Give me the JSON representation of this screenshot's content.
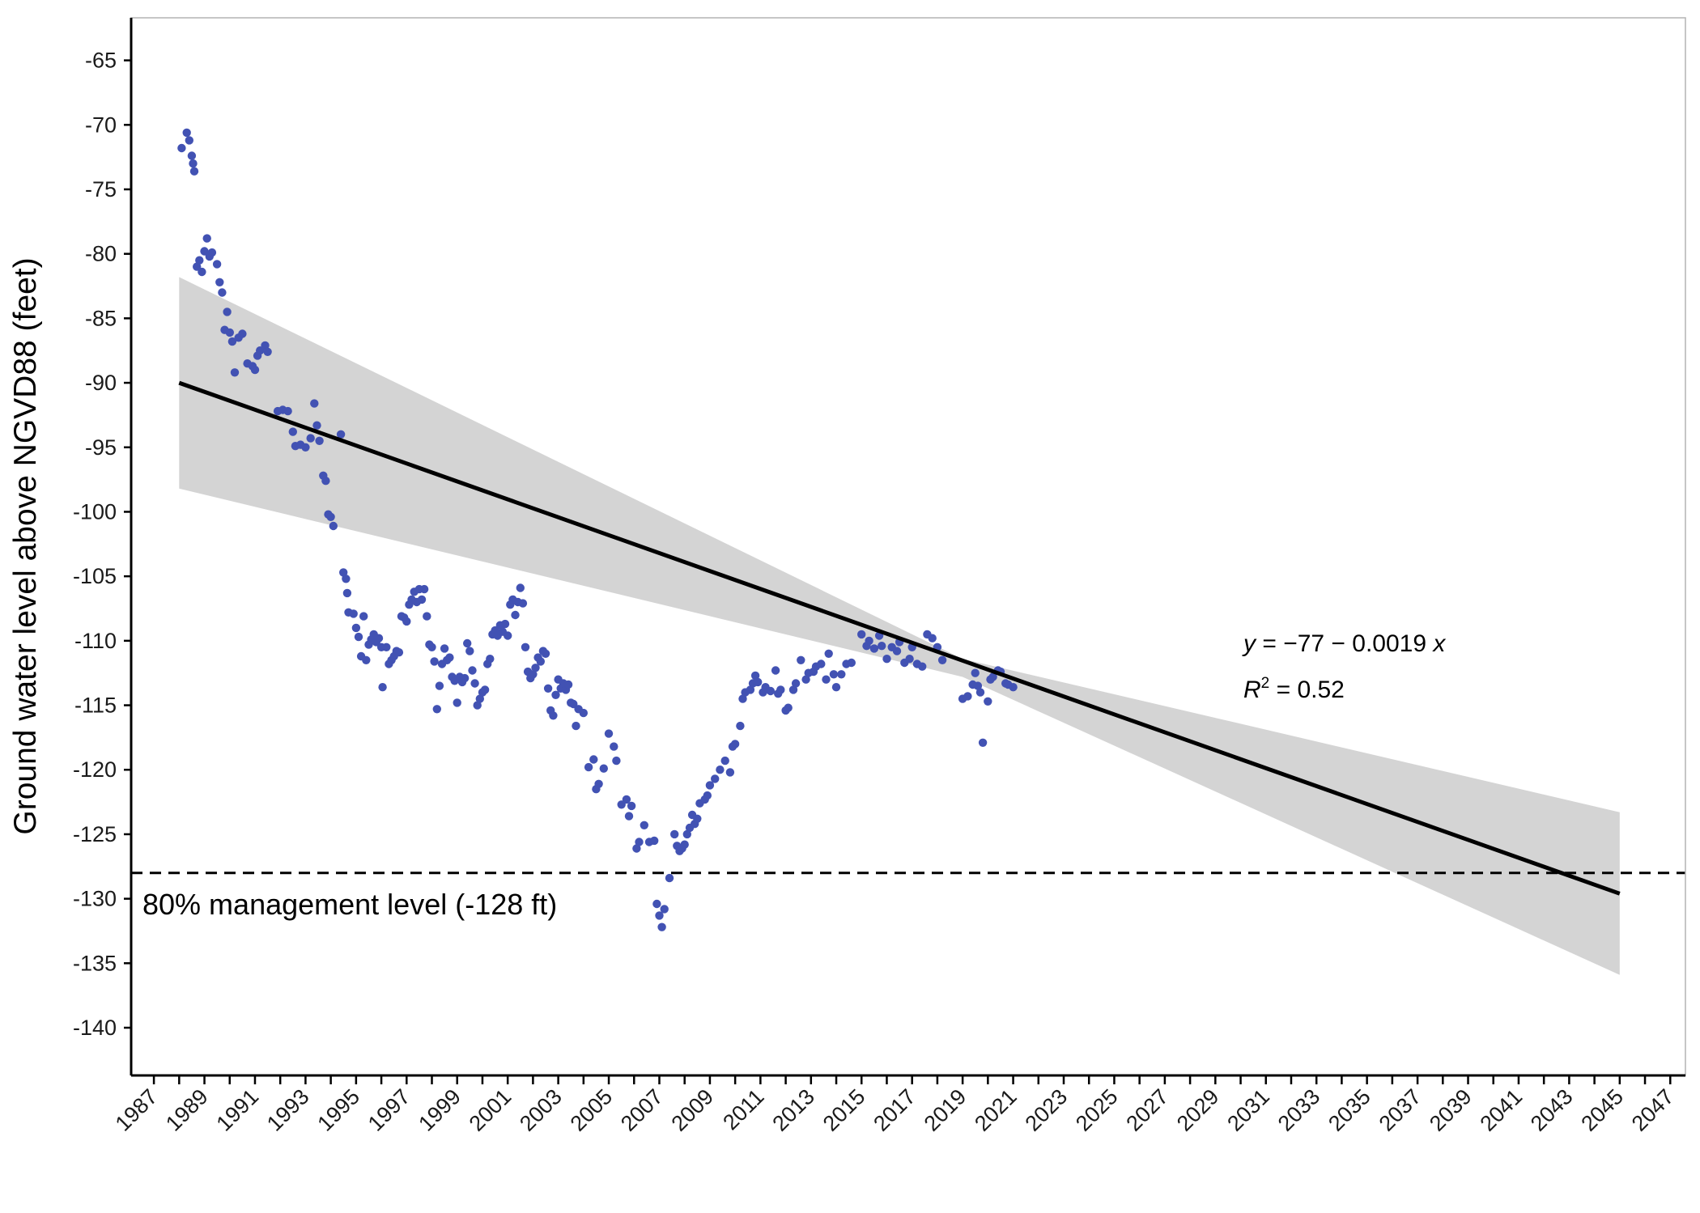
{
  "chart_data": {
    "type": "scatter",
    "title": "",
    "ylabel": "Ground water level above NGVD88 (feet)",
    "xlabel": "",
    "xlim": [
      1986.1,
      2047.6
    ],
    "ylim": [
      -143.7,
      -61.7
    ],
    "x_ticks": [
      "1987",
      "1989",
      "1991",
      "1993",
      "1995",
      "1997",
      "1999",
      "2001",
      "2003",
      "2005",
      "2007",
      "2009",
      "2011",
      "2013",
      "2015",
      "2017",
      "2019",
      "2021",
      "2023",
      "2025",
      "2027",
      "2029",
      "2031",
      "2033",
      "2035",
      "2037",
      "2039",
      "2041",
      "2043",
      "2045",
      "2047"
    ],
    "y_ticks": [
      "-65",
      "-70",
      "-75",
      "-80",
      "-85",
      "-90",
      "-95",
      "-100",
      "-105",
      "-110",
      "-115",
      "-120",
      "-125",
      "-130",
      "-135",
      "-140"
    ],
    "grid": false,
    "legend": "none",
    "colors": {
      "points": "#4252b3",
      "fit_line": "#000000",
      "confidence_band": "#d4d4d4",
      "reference_line": "#000000"
    },
    "fit": {
      "x_range": [
        1988,
        2045
      ],
      "y_at_start": -90.0,
      "y_at_end": -129.6,
      "band_at_start": [
        -98.2,
        -81.8
      ],
      "band_at_pivot": [
        -112.8,
        -111.4
      ],
      "band_pivot_x": 2019,
      "band_at_end": [
        -135.9,
        -123.3
      ]
    },
    "reference_line": {
      "y": -128
    },
    "annotations": {
      "equation_y": "y",
      "equation_rest": " = −77 − 0.0019 ",
      "equation_x": "x",
      "r2_r": "R",
      "r2_sup": "2",
      "r2_value": " = 0.52",
      "reference_label": "80% management level (-128 ft)"
    },
    "points": [
      [
        1988.1,
        -71.8
      ],
      [
        1988.3,
        -70.6
      ],
      [
        1988.4,
        -71.2
      ],
      [
        1988.5,
        -72.4
      ],
      [
        1988.55,
        -73.0
      ],
      [
        1988.6,
        -73.6
      ],
      [
        1988.7,
        -81.0
      ],
      [
        1988.8,
        -80.5
      ],
      [
        1988.9,
        -81.4
      ],
      [
        1989.0,
        -79.8
      ],
      [
        1989.1,
        -78.8
      ],
      [
        1989.2,
        -80.2
      ],
      [
        1989.3,
        -79.9
      ],
      [
        1989.5,
        -80.8
      ],
      [
        1989.6,
        -82.2
      ],
      [
        1989.7,
        -83.0
      ],
      [
        1989.8,
        -85.9
      ],
      [
        1989.9,
        -84.5
      ],
      [
        1990.0,
        -86.1
      ],
      [
        1990.1,
        -86.8
      ],
      [
        1990.2,
        -89.2
      ],
      [
        1990.35,
        -86.5
      ],
      [
        1990.5,
        -86.2
      ],
      [
        1990.7,
        -88.5
      ],
      [
        1990.9,
        -88.7
      ],
      [
        1991.0,
        -89.0
      ],
      [
        1991.1,
        -87.9
      ],
      [
        1991.2,
        -87.5
      ],
      [
        1991.4,
        -87.1
      ],
      [
        1991.5,
        -87.6
      ],
      [
        1991.9,
        -92.2
      ],
      [
        1992.1,
        -92.1
      ],
      [
        1992.3,
        -92.2
      ],
      [
        1992.5,
        -93.8
      ],
      [
        1992.6,
        -94.9
      ],
      [
        1992.8,
        -94.8
      ],
      [
        1993.0,
        -95.0
      ],
      [
        1993.2,
        -94.3
      ],
      [
        1993.35,
        -91.6
      ],
      [
        1993.45,
        -93.3
      ],
      [
        1993.55,
        -94.5
      ],
      [
        1993.7,
        -97.2
      ],
      [
        1993.8,
        -97.6
      ],
      [
        1993.9,
        -100.2
      ],
      [
        1994.0,
        -100.4
      ],
      [
        1994.1,
        -101.1
      ],
      [
        1994.4,
        -94.0
      ],
      [
        1994.5,
        -104.7
      ],
      [
        1994.6,
        -105.2
      ],
      [
        1994.65,
        -106.3
      ],
      [
        1994.7,
        -107.8
      ],
      [
        1994.9,
        -107.9
      ],
      [
        1995.0,
        -109.0
      ],
      [
        1995.1,
        -109.7
      ],
      [
        1995.2,
        -111.2
      ],
      [
        1995.3,
        -108.1
      ],
      [
        1995.4,
        -111.5
      ],
      [
        1995.5,
        -110.3
      ],
      [
        1995.6,
        -109.9
      ],
      [
        1995.7,
        -109.5
      ],
      [
        1995.8,
        -110.1
      ],
      [
        1995.9,
        -109.8
      ],
      [
        1996.0,
        -110.5
      ],
      [
        1996.05,
        -113.6
      ],
      [
        1996.2,
        -110.5
      ],
      [
        1996.3,
        -111.8
      ],
      [
        1996.4,
        -111.5
      ],
      [
        1996.5,
        -111.2
      ],
      [
        1996.6,
        -110.8
      ],
      [
        1996.7,
        -110.9
      ],
      [
        1996.8,
        -108.1
      ],
      [
        1996.9,
        -108.2
      ],
      [
        1997.0,
        -108.5
      ],
      [
        1997.1,
        -107.2
      ],
      [
        1997.2,
        -106.8
      ],
      [
        1997.3,
        -106.2
      ],
      [
        1997.4,
        -107.0
      ],
      [
        1997.5,
        -106.0
      ],
      [
        1997.6,
        -106.8
      ],
      [
        1997.7,
        -106.0
      ],
      [
        1997.8,
        -108.1
      ],
      [
        1997.9,
        -110.3
      ],
      [
        1998.0,
        -110.5
      ],
      [
        1998.1,
        -111.6
      ],
      [
        1998.2,
        -115.3
      ],
      [
        1998.3,
        -113.5
      ],
      [
        1998.4,
        -111.8
      ],
      [
        1998.5,
        -110.6
      ],
      [
        1998.6,
        -111.5
      ],
      [
        1998.7,
        -111.3
      ],
      [
        1998.8,
        -112.8
      ],
      [
        1998.9,
        -113.1
      ],
      [
        1999.0,
        -114.8
      ],
      [
        1999.1,
        -112.8
      ],
      [
        1999.2,
        -113.2
      ],
      [
        1999.3,
        -112.9
      ],
      [
        1999.4,
        -110.2
      ],
      [
        1999.5,
        -110.8
      ],
      [
        1999.6,
        -112.3
      ],
      [
        1999.7,
        -113.3
      ],
      [
        1999.8,
        -115.0
      ],
      [
        1999.9,
        -114.5
      ],
      [
        2000.0,
        -114.0
      ],
      [
        2000.1,
        -113.8
      ],
      [
        2000.2,
        -111.8
      ],
      [
        2000.3,
        -111.4
      ],
      [
        2000.4,
        -109.5
      ],
      [
        2000.5,
        -109.2
      ],
      [
        2000.6,
        -109.6
      ],
      [
        2000.7,
        -108.8
      ],
      [
        2000.8,
        -109.3
      ],
      [
        2000.9,
        -108.7
      ],
      [
        2001.0,
        -109.6
      ],
      [
        2001.1,
        -107.2
      ],
      [
        2001.2,
        -106.8
      ],
      [
        2001.3,
        -108.0
      ],
      [
        2001.4,
        -107.0
      ],
      [
        2001.5,
        -105.9
      ],
      [
        2001.6,
        -107.1
      ],
      [
        2001.7,
        -110.5
      ],
      [
        2001.8,
        -112.4
      ],
      [
        2001.9,
        -112.9
      ],
      [
        2002.0,
        -112.6
      ],
      [
        2002.1,
        -112.1
      ],
      [
        2002.2,
        -111.3
      ],
      [
        2002.3,
        -111.6
      ],
      [
        2002.4,
        -110.8
      ],
      [
        2002.5,
        -111.0
      ],
      [
        2002.6,
        -113.7
      ],
      [
        2002.7,
        -115.4
      ],
      [
        2002.8,
        -115.8
      ],
      [
        2002.9,
        -114.2
      ],
      [
        2003.0,
        -113.0
      ],
      [
        2003.1,
        -113.7
      ],
      [
        2003.2,
        -113.3
      ],
      [
        2003.3,
        -113.8
      ],
      [
        2003.4,
        -113.4
      ],
      [
        2003.5,
        -114.8
      ],
      [
        2003.6,
        -114.9
      ],
      [
        2003.7,
        -116.6
      ],
      [
        2003.8,
        -115.3
      ],
      [
        2004.0,
        -115.6
      ],
      [
        2004.2,
        -119.8
      ],
      [
        2004.4,
        -119.2
      ],
      [
        2004.5,
        -121.5
      ],
      [
        2004.6,
        -121.1
      ],
      [
        2004.8,
        -119.9
      ],
      [
        2005.0,
        -117.2
      ],
      [
        2005.2,
        -118.2
      ],
      [
        2005.3,
        -119.3
      ],
      [
        2005.5,
        -122.7
      ],
      [
        2005.7,
        -122.3
      ],
      [
        2005.8,
        -123.6
      ],
      [
        2005.9,
        -122.8
      ],
      [
        2006.1,
        -126.1
      ],
      [
        2006.2,
        -125.6
      ],
      [
        2006.4,
        -124.3
      ],
      [
        2006.6,
        -125.6
      ],
      [
        2006.8,
        -125.5
      ],
      [
        2006.9,
        -130.4
      ],
      [
        2007.0,
        -131.3
      ],
      [
        2007.1,
        -132.2
      ],
      [
        2007.2,
        -130.8
      ],
      [
        2007.4,
        -128.4
      ],
      [
        2007.6,
        -125.0
      ],
      [
        2007.7,
        -125.9
      ],
      [
        2007.8,
        -126.3
      ],
      [
        2007.9,
        -126.1
      ],
      [
        2008.0,
        -125.8
      ],
      [
        2008.1,
        -125.0
      ],
      [
        2008.2,
        -124.5
      ],
      [
        2008.3,
        -123.5
      ],
      [
        2008.4,
        -124.2
      ],
      [
        2008.5,
        -123.8
      ],
      [
        2008.6,
        -122.6
      ],
      [
        2008.8,
        -122.3
      ],
      [
        2008.9,
        -122.0
      ],
      [
        2009.0,
        -121.2
      ],
      [
        2009.2,
        -120.7
      ],
      [
        2009.4,
        -120.0
      ],
      [
        2009.6,
        -119.3
      ],
      [
        2009.8,
        -120.2
      ],
      [
        2009.9,
        -118.2
      ],
      [
        2010.0,
        -118.0
      ],
      [
        2010.2,
        -116.6
      ],
      [
        2010.3,
        -114.5
      ],
      [
        2010.4,
        -114.0
      ],
      [
        2010.6,
        -113.8
      ],
      [
        2010.7,
        -113.3
      ],
      [
        2010.8,
        -112.7
      ],
      [
        2010.9,
        -113.2
      ],
      [
        2011.1,
        -114.0
      ],
      [
        2011.2,
        -113.6
      ],
      [
        2011.4,
        -113.9
      ],
      [
        2011.6,
        -112.3
      ],
      [
        2011.7,
        -114.1
      ],
      [
        2011.8,
        -113.8
      ],
      [
        2012.0,
        -115.4
      ],
      [
        2012.1,
        -115.2
      ],
      [
        2012.3,
        -113.8
      ],
      [
        2012.4,
        -113.3
      ],
      [
        2012.6,
        -111.5
      ],
      [
        2012.8,
        -113.0
      ],
      [
        2012.9,
        -112.5
      ],
      [
        2013.1,
        -112.4
      ],
      [
        2013.2,
        -112.0
      ],
      [
        2013.4,
        -111.8
      ],
      [
        2013.6,
        -113.0
      ],
      [
        2013.7,
        -111.0
      ],
      [
        2013.9,
        -112.6
      ],
      [
        2014.0,
        -113.6
      ],
      [
        2014.2,
        -112.6
      ],
      [
        2014.4,
        -111.8
      ],
      [
        2014.6,
        -111.7
      ],
      [
        2015.0,
        -109.5
      ],
      [
        2015.2,
        -110.4
      ],
      [
        2015.3,
        -110.0
      ],
      [
        2015.5,
        -110.6
      ],
      [
        2015.7,
        -109.6
      ],
      [
        2015.8,
        -110.4
      ],
      [
        2016.0,
        -111.4
      ],
      [
        2016.2,
        -110.5
      ],
      [
        2016.4,
        -110.8
      ],
      [
        2016.5,
        -110.1
      ],
      [
        2016.7,
        -111.7
      ],
      [
        2016.9,
        -111.4
      ],
      [
        2017.0,
        -110.5
      ],
      [
        2017.2,
        -111.8
      ],
      [
        2017.4,
        -112.0
      ],
      [
        2017.6,
        -109.5
      ],
      [
        2017.8,
        -109.8
      ],
      [
        2018.0,
        -110.5
      ],
      [
        2018.2,
        -111.5
      ],
      [
        2019.0,
        -114.5
      ],
      [
        2019.2,
        -114.3
      ],
      [
        2019.4,
        -113.4
      ],
      [
        2019.5,
        -112.5
      ],
      [
        2019.6,
        -113.5
      ],
      [
        2019.7,
        -114.0
      ],
      [
        2019.8,
        -117.9
      ],
      [
        2020.0,
        -114.7
      ],
      [
        2020.1,
        -113.0
      ],
      [
        2020.2,
        -112.8
      ],
      [
        2020.4,
        -112.3
      ],
      [
        2020.5,
        -112.4
      ],
      [
        2020.7,
        -113.3
      ],
      [
        2020.8,
        -113.4
      ],
      [
        2021.0,
        -113.6
      ]
    ]
  }
}
